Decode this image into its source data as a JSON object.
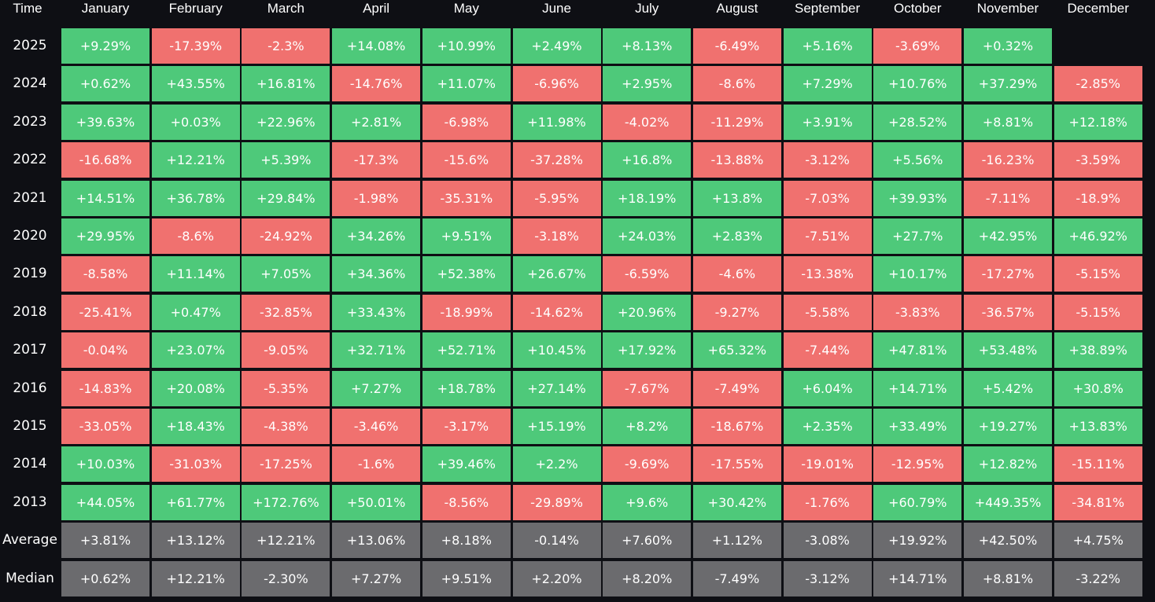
{
  "table": {
    "corner": "Time",
    "months": [
      "January",
      "February",
      "March",
      "April",
      "May",
      "June",
      "July",
      "August",
      "September",
      "October",
      "November",
      "December"
    ],
    "rows": [
      {
        "label": "2025",
        "values": [
          "+9.29%",
          "-17.39%",
          "-2.3%",
          "+14.08%",
          "+10.99%",
          "+2.49%",
          "+8.13%",
          "-6.49%",
          "+5.16%",
          "-3.69%",
          "+0.32%",
          ""
        ]
      },
      {
        "label": "2024",
        "values": [
          "+0.62%",
          "+43.55%",
          "+16.81%",
          "-14.76%",
          "+11.07%",
          "-6.96%",
          "+2.95%",
          "-8.6%",
          "+7.29%",
          "+10.76%",
          "+37.29%",
          "-2.85%"
        ]
      },
      {
        "label": "2023",
        "values": [
          "+39.63%",
          "+0.03%",
          "+22.96%",
          "+2.81%",
          "-6.98%",
          "+11.98%",
          "-4.02%",
          "-11.29%",
          "+3.91%",
          "+28.52%",
          "+8.81%",
          "+12.18%"
        ]
      },
      {
        "label": "2022",
        "values": [
          "-16.68%",
          "+12.21%",
          "+5.39%",
          "-17.3%",
          "-15.6%",
          "-37.28%",
          "+16.8%",
          "-13.88%",
          "-3.12%",
          "+5.56%",
          "-16.23%",
          "-3.59%"
        ]
      },
      {
        "label": "2021",
        "values": [
          "+14.51%",
          "+36.78%",
          "+29.84%",
          "-1.98%",
          "-35.31%",
          "-5.95%",
          "+18.19%",
          "+13.8%",
          "-7.03%",
          "+39.93%",
          "-7.11%",
          "-18.9%"
        ]
      },
      {
        "label": "2020",
        "values": [
          "+29.95%",
          "-8.6%",
          "-24.92%",
          "+34.26%",
          "+9.51%",
          "-3.18%",
          "+24.03%",
          "+2.83%",
          "-7.51%",
          "+27.7%",
          "+42.95%",
          "+46.92%"
        ]
      },
      {
        "label": "2019",
        "values": [
          "-8.58%",
          "+11.14%",
          "+7.05%",
          "+34.36%",
          "+52.38%",
          "+26.67%",
          "-6.59%",
          "-4.6%",
          "-13.38%",
          "+10.17%",
          "-17.27%",
          "-5.15%"
        ]
      },
      {
        "label": "2018",
        "values": [
          "-25.41%",
          "+0.47%",
          "-32.85%",
          "+33.43%",
          "-18.99%",
          "-14.62%",
          "+20.96%",
          "-9.27%",
          "-5.58%",
          "-3.83%",
          "-36.57%",
          "-5.15%"
        ]
      },
      {
        "label": "2017",
        "values": [
          "-0.04%",
          "+23.07%",
          "-9.05%",
          "+32.71%",
          "+52.71%",
          "+10.45%",
          "+17.92%",
          "+65.32%",
          "-7.44%",
          "+47.81%",
          "+53.48%",
          "+38.89%"
        ]
      },
      {
        "label": "2016",
        "values": [
          "-14.83%",
          "+20.08%",
          "-5.35%",
          "+7.27%",
          "+18.78%",
          "+27.14%",
          "-7.67%",
          "-7.49%",
          "+6.04%",
          "+14.71%",
          "+5.42%",
          "+30.8%"
        ]
      },
      {
        "label": "2015",
        "values": [
          "-33.05%",
          "+18.43%",
          "-4.38%",
          "-3.46%",
          "-3.17%",
          "+15.19%",
          "+8.2%",
          "-18.67%",
          "+2.35%",
          "+33.49%",
          "+19.27%",
          "+13.83%"
        ]
      },
      {
        "label": "2014",
        "values": [
          "+10.03%",
          "-31.03%",
          "-17.25%",
          "-1.6%",
          "+39.46%",
          "+2.2%",
          "-9.69%",
          "-17.55%",
          "-19.01%",
          "-12.95%",
          "+12.82%",
          "-15.11%"
        ]
      },
      {
        "label": "2013",
        "values": [
          "+44.05%",
          "+61.77%",
          "+172.76%",
          "+50.01%",
          "-8.56%",
          "-29.89%",
          "+9.6%",
          "+30.42%",
          "-1.76%",
          "+60.79%",
          "+449.35%",
          "-34.81%"
        ]
      }
    ],
    "summary": [
      {
        "label": "Average",
        "values": [
          "+3.81%",
          "+13.12%",
          "+12.21%",
          "+13.06%",
          "+8.18%",
          "-0.14%",
          "+7.60%",
          "+1.12%",
          "-3.08%",
          "+19.92%",
          "+42.50%",
          "+4.75%"
        ]
      },
      {
        "label": "Median",
        "values": [
          "+0.62%",
          "+12.21%",
          "-2.30%",
          "+7.27%",
          "+9.51%",
          "+2.20%",
          "+8.20%",
          "-7.49%",
          "-3.12%",
          "+14.71%",
          "+8.81%",
          "-3.22%"
        ]
      }
    ]
  },
  "colors": {
    "positive": "#4ec97a",
    "negative": "#f0716f",
    "summary": "#6b6b6e",
    "background": "#0e0f14"
  }
}
